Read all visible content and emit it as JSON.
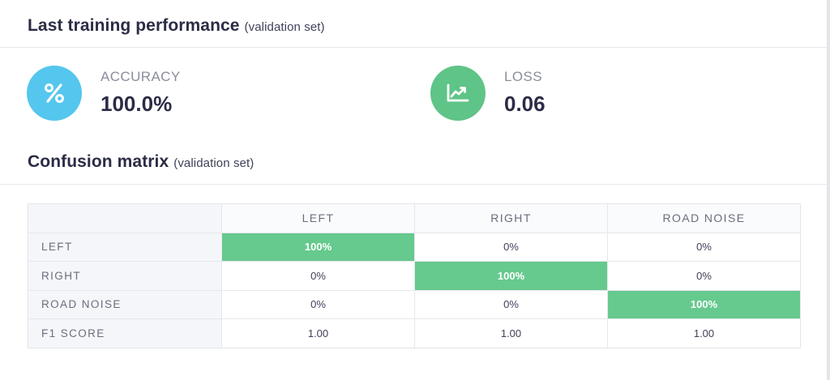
{
  "performance": {
    "title": "Last training performance",
    "subtitle": "(validation set)"
  },
  "metrics": {
    "accuracy": {
      "label": "ACCURACY",
      "value": "100.0%",
      "icon": "percent-icon",
      "color": "#55c6ee"
    },
    "loss": {
      "label": "LOSS",
      "value": "0.06",
      "icon": "chart-line-icon",
      "color": "#5fc487"
    }
  },
  "confusion": {
    "title": "Confusion matrix",
    "subtitle": "(validation set)",
    "columns": [
      "LEFT",
      "RIGHT",
      "ROAD NOISE"
    ],
    "rows": [
      {
        "label": "LEFT",
        "cells": [
          "100%",
          "0%",
          "0%"
        ]
      },
      {
        "label": "RIGHT",
        "cells": [
          "0%",
          "100%",
          "0%"
        ]
      },
      {
        "label": "ROAD NOISE",
        "cells": [
          "0%",
          "0%",
          "100%"
        ]
      },
      {
        "label": "F1 SCORE",
        "cells": [
          "1.00",
          "1.00",
          "1.00"
        ]
      }
    ],
    "highlight_color": "#66c98e"
  }
}
